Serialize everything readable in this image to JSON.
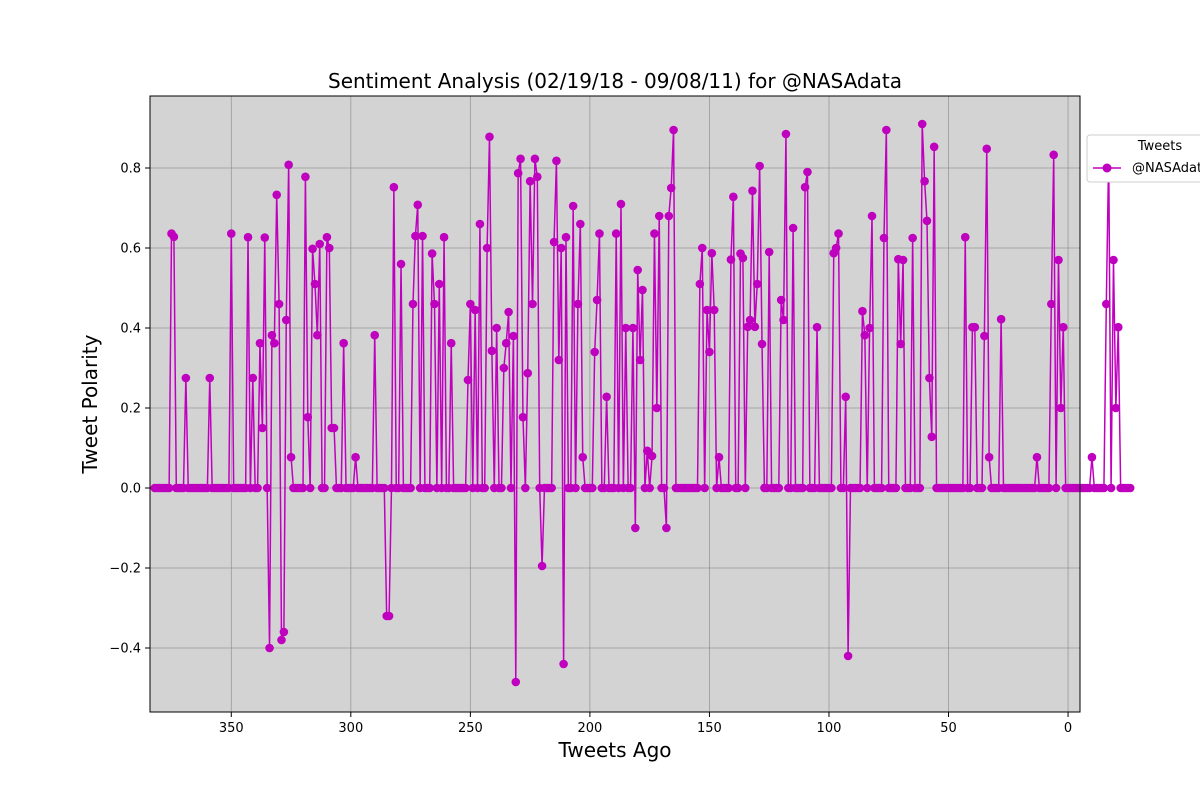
{
  "chart_data": {
    "type": "line",
    "title": "Sentiment Analysis (02/19/18 - 09/08/11) for @NASAdata",
    "xlabel": "Tweets Ago",
    "ylabel": "Tweet Polarity",
    "xlim": [
      384,
      -5
    ],
    "ylim": [
      -0.56,
      0.98
    ],
    "xticks": [
      350,
      300,
      250,
      200,
      150,
      100,
      50,
      0
    ],
    "xtick_labels": [
      "350",
      "300",
      "250",
      "200",
      "150",
      "100",
      "50",
      "0"
    ],
    "yticks": [
      -0.4,
      -0.2,
      0.0,
      0.2,
      0.4,
      0.6,
      0.8
    ],
    "ytick_labels": [
      "−0.4",
      "−0.2",
      "0.0",
      "0.2",
      "0.4",
      "0.6",
      "0.8"
    ],
    "grid": true,
    "background_color": "#d3d3d3",
    "legend": {
      "title": "Tweets",
      "position": "outside-right"
    },
    "series": [
      {
        "name": "@NASAdata",
        "color": "#bf00bf",
        "marker": "circle",
        "x_start": 382,
        "x_step": -1,
        "values": [
          0,
          0,
          0,
          0,
          0,
          0,
          0,
          0.636,
          0.628,
          0,
          0,
          0,
          0,
          0.275,
          0,
          0,
          0,
          0,
          0,
          0,
          0,
          0,
          0,
          0.275,
          0,
          0,
          0,
          0,
          0,
          0,
          0,
          0,
          0.636,
          0,
          0,
          0,
          0,
          0,
          0,
          0.627,
          0,
          0.275,
          0,
          0,
          0.362,
          0.15,
          0.626,
          0,
          -0.4,
          0.382,
          0.362,
          0.733,
          0.46,
          -0.38,
          -0.36,
          0.42,
          0.808,
          0.077,
          0,
          0,
          0,
          0,
          0,
          0.778,
          0.177,
          0,
          0.598,
          0.51,
          0.382,
          0.61,
          0,
          0,
          0.627,
          0.6,
          0.15,
          0.15,
          0,
          0,
          0,
          0.362,
          0,
          0,
          0,
          0,
          0.077,
          0,
          0,
          0,
          0,
          0,
          0,
          0,
          0.382,
          0,
          0,
          0,
          0,
          -0.32,
          -0.32,
          0,
          0.752,
          0,
          0,
          0.56,
          0,
          0,
          0,
          0,
          0.46,
          0.63,
          0.708,
          0,
          0.63,
          0,
          0,
          0,
          0.586,
          0.46,
          0,
          0.51,
          0,
          0.627,
          0,
          0,
          0.362,
          0,
          0,
          0,
          0,
          0,
          0,
          0.27,
          0.46,
          0,
          0.445,
          0,
          0.66,
          0,
          0,
          0.6,
          0.878,
          0.343,
          0,
          0.4,
          0,
          0,
          0.3,
          0.362,
          0.44,
          0,
          0.38,
          -0.485,
          0.787,
          0.823,
          0.177,
          0,
          0.287,
          0.767,
          0.46,
          0.823,
          0.778,
          0,
          -0.195,
          0,
          0,
          0,
          0,
          0.615,
          0.818,
          0.32,
          0.6,
          -0.44,
          0.627,
          0,
          0,
          0.705,
          0,
          0.46,
          0.66,
          0.077,
          0,
          0,
          0,
          0,
          0.34,
          0.47,
          0.636,
          0,
          0,
          0.228,
          0,
          0,
          0,
          0.636,
          0,
          0.71,
          0,
          0.4,
          0,
          0,
          0.4,
          -0.1,
          0.545,
          0.32,
          0.495,
          0,
          0.093,
          0,
          0.08,
          0.636,
          0.2,
          0.68,
          0,
          0,
          -0.1,
          0.68,
          0.75,
          0.895,
          0,
          0,
          0,
          0,
          0,
          0,
          0,
          0,
          0,
          0,
          0.51,
          0.6,
          0,
          0.445,
          0.34,
          0.587,
          0.445,
          0,
          0.077,
          0,
          0,
          0,
          0,
          0.571,
          0.728,
          0,
          0,
          0.586,
          0.575,
          0,
          0.403,
          0.42,
          0.743,
          0.403,
          0.51,
          0.805,
          0.36,
          0,
          0,
          0.59,
          0,
          0,
          0,
          0,
          0.47,
          0.42,
          0.885,
          0,
          0,
          0.65,
          0,
          0,
          0,
          0,
          0.752,
          0.79,
          0,
          0,
          0,
          0.402,
          0,
          0,
          0,
          0,
          0,
          0,
          0.587,
          0.6,
          0.636,
          0,
          0,
          0.228,
          -0.42,
          0,
          0,
          0,
          0,
          0,
          0.442,
          0.382,
          0,
          0.4,
          0.68,
          0,
          0,
          0,
          0,
          0.625,
          0.895,
          0,
          0,
          0,
          0,
          0.572,
          0.36,
          0.57,
          0,
          0,
          0,
          0.625,
          0,
          0,
          0,
          0.91,
          0.767,
          0.668,
          0.275,
          0.128,
          0.853,
          0,
          0,
          0,
          0,
          0,
          0,
          0,
          0,
          0,
          0,
          0,
          0,
          0.627,
          0,
          0,
          0.402,
          0.402,
          0,
          0,
          0,
          0.38,
          0.848,
          0.077,
          0,
          0,
          0,
          0,
          0.422,
          0,
          0,
          0,
          0,
          0,
          0,
          0,
          0,
          0,
          0,
          0,
          0,
          0,
          0,
          0.077,
          0,
          0,
          0,
          0,
          0,
          0.46,
          0.833,
          0,
          0.57,
          0.2,
          0.402,
          0,
          0,
          0,
          0,
          0,
          0,
          0,
          0,
          0,
          0,
          0,
          0.077,
          0,
          0,
          0,
          0,
          0,
          0.46,
          0.833,
          0,
          0.57,
          0.2,
          0.402,
          0,
          0,
          0,
          0,
          0
        ]
      }
    ]
  }
}
